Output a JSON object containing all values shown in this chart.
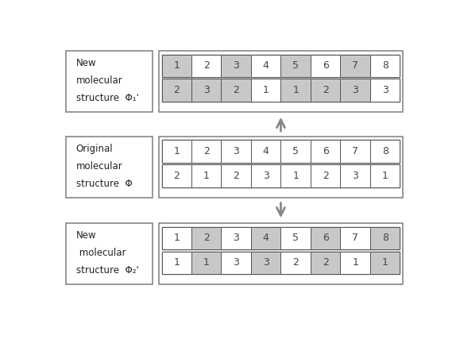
{
  "sections": [
    {
      "label_lines": [
        "New",
        "molecular",
        "structure  Φ₁'"
      ],
      "row1_vals": [
        "1",
        "2",
        "3",
        "4",
        "5",
        "6",
        "7",
        "8"
      ],
      "row1_gray": [
        true,
        false,
        true,
        false,
        true,
        false,
        true,
        false
      ],
      "row2_vals": [
        "2",
        "3",
        "2",
        "1",
        "1",
        "2",
        "3",
        "3"
      ],
      "row2_gray": [
        true,
        true,
        true,
        false,
        true,
        true,
        true,
        false
      ]
    },
    {
      "label_lines": [
        "Original",
        "molecular",
        "structure  Φ"
      ],
      "row1_vals": [
        "1",
        "2",
        "3",
        "4",
        "5",
        "6",
        "7",
        "8"
      ],
      "row1_gray": [
        false,
        false,
        false,
        false,
        false,
        false,
        false,
        false
      ],
      "row2_vals": [
        "2",
        "1",
        "2",
        "3",
        "1",
        "2",
        "3",
        "1"
      ],
      "row2_gray": [
        false,
        false,
        false,
        false,
        false,
        false,
        false,
        false
      ]
    },
    {
      "label_lines": [
        "New",
        " molecular",
        "structure  Φ₂'"
      ],
      "row1_vals": [
        "1",
        "2",
        "3",
        "4",
        "5",
        "6",
        "7",
        "8"
      ],
      "row1_gray": [
        false,
        true,
        false,
        true,
        false,
        true,
        false,
        true
      ],
      "row2_vals": [
        "1",
        "1",
        "3",
        "3",
        "2",
        "2",
        "1",
        "1"
      ],
      "row2_gray": [
        false,
        true,
        false,
        true,
        false,
        true,
        false,
        true
      ]
    }
  ],
  "gray_color": "#c8c8c8",
  "white_color": "#ffffff",
  "cell_text_color": "#444444",
  "label_text_color": "#222222",
  "outer_box_color": "#888888",
  "inner_box_color": "#555555",
  "arrow_color": "#888888",
  "fig_bg": "#ffffff",
  "figsize": [
    5.74,
    4.37
  ],
  "dpi": 100
}
